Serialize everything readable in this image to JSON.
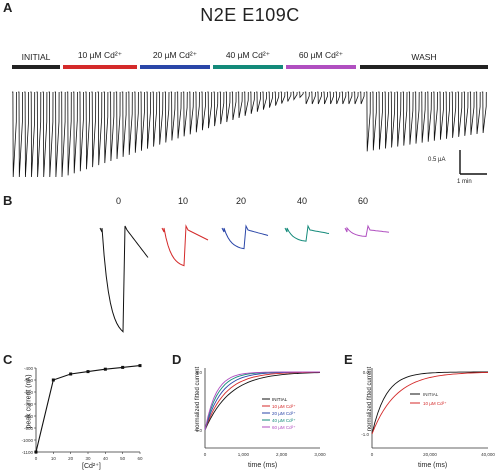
{
  "figure": {
    "title": "N2E E109C",
    "panel_labels": [
      "A",
      "B",
      "C",
      "D",
      "E"
    ]
  },
  "panelA": {
    "conditions": [
      {
        "label": "INITIAL",
        "color": "#222222"
      },
      {
        "label": "10 µM Cd²⁺",
        "color": "#d42a2a"
      },
      {
        "label": "20 µM Cd²⁺",
        "color": "#2a46a8"
      },
      {
        "label": "40 µM Cd²⁺",
        "color": "#138a7a"
      },
      {
        "label": "60 µM Cd²⁺",
        "color": "#b04fc0"
      },
      {
        "label": "WASH",
        "color": "#222222"
      }
    ],
    "scalebar": {
      "current": "0.5 µA",
      "time": "1 min"
    }
  },
  "panelB": {
    "trace_labels": [
      "0",
      "10",
      "20",
      "40",
      "60"
    ],
    "colors": [
      "#111111",
      "#d42a2a",
      "#2a46a8",
      "#138a7a",
      "#b04fc0"
    ]
  },
  "panelC": {
    "ylabel": "peak current (nA)",
    "xlabel": "[Cd²⁺]",
    "chart_data": {
      "type": "line",
      "x": [
        0,
        10,
        20,
        30,
        40,
        50,
        60
      ],
      "y": [
        -1100,
        -500,
        -450,
        -430,
        -410,
        -395,
        -380
      ],
      "xticks": [
        "0",
        "10",
        "20",
        "30",
        "40",
        "50",
        "60"
      ],
      "yticks": [
        "-400",
        "-500",
        "-600",
        "-700",
        "-800",
        "-900",
        "-1000",
        "-1100"
      ]
    }
  },
  "panelD": {
    "ylabel": "normalized fitted current",
    "xlabel": "time (ms)",
    "xticks": [
      "0",
      "1,000",
      "2,000",
      "3,000"
    ],
    "yticks": [
      "0.0",
      "-1.0"
    ],
    "legend": [
      {
        "label": "INITIAL",
        "color": "#111111"
      },
      {
        "label": "10 µM Cd²⁺",
        "color": "#d42a2a"
      },
      {
        "label": "20 µM Cd²⁺",
        "color": "#2a46a8"
      },
      {
        "label": "40 µM Cd²⁺",
        "color": "#138a7a"
      },
      {
        "label": "60 µM Cd²⁺",
        "color": "#b04fc0"
      }
    ]
  },
  "panelE": {
    "ylabel": "normalized fitted current",
    "xlabel": "time (ms)",
    "xticks": [
      "0",
      "20,000",
      "40,000"
    ],
    "yticks": [
      "0.0",
      "-1.0"
    ],
    "legend": [
      {
        "label": "INITIAL",
        "color": "#111111"
      },
      {
        "label": "10 µM Cd²⁺",
        "color": "#d42a2a"
      }
    ]
  }
}
